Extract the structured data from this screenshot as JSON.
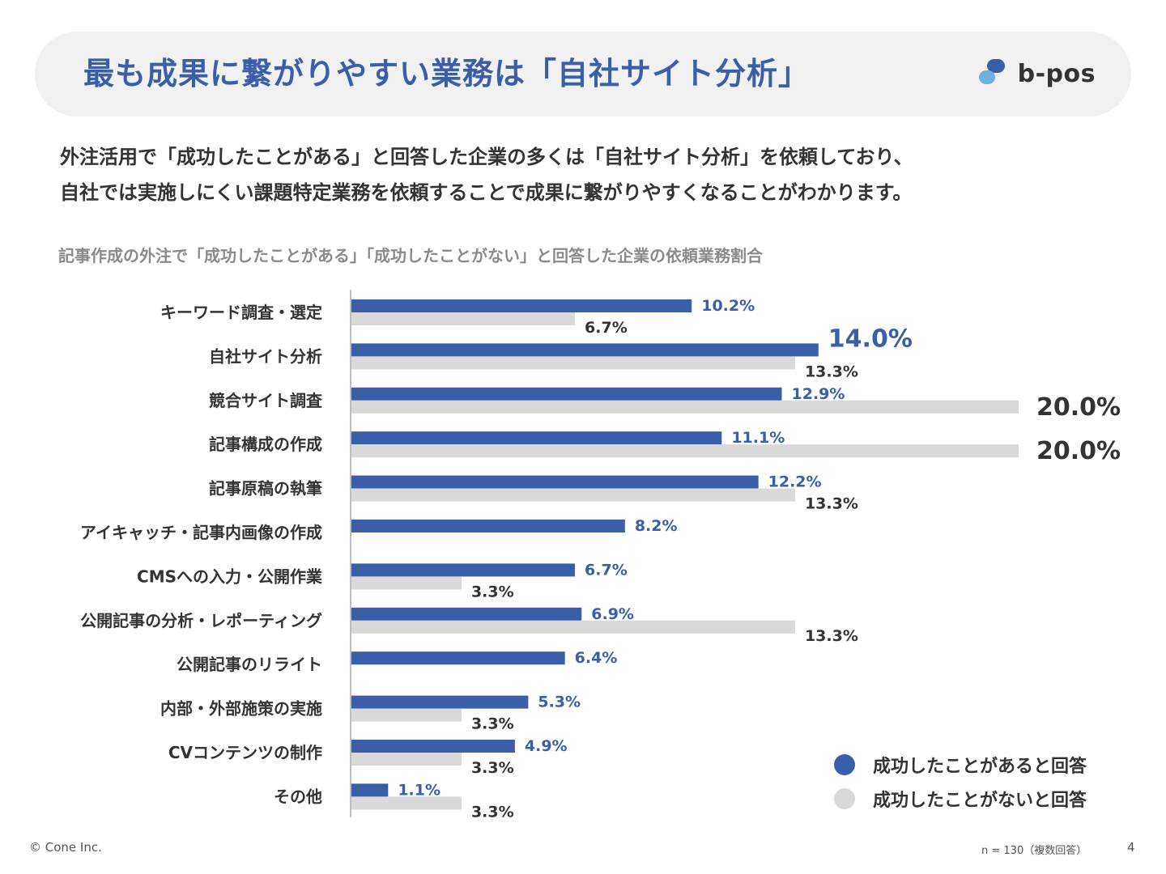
{
  "header": {
    "title": "最も成果に繋がりやすい業務は「自社サイト分析」",
    "logo_text": "b-pos",
    "logo_icon": "b-pos-logo-icon"
  },
  "lead": {
    "line1": "外注活用で「成功したことがある」と回答した企業の多くは「自社サイト分析」を依頼しており、",
    "line2": "自社では実施しにくい課題特定業務を依頼することで成果に繋がりやすくなることがわかります。"
  },
  "chart_caption": "記事作成の外注で「成功したことがある」「成功したことがない」と回答した企業の依頼業務割合",
  "chart_data": {
    "type": "bar",
    "orientation": "horizontal",
    "title": "記事作成の外注で「成功したことがある」「成功したことがない」と回答した企業の依頼業務割合",
    "categories": [
      "キーワード調査・選定",
      "自社サイト分析",
      "競合サイト調査",
      "記事構成の作成",
      "記事原稿の執筆",
      "アイキャッチ・記事内画像の作成",
      "CMSへの入力・公開作業",
      "公開記事の分析・レポーティング",
      "公開記事のリライト",
      "内部・外部施策の実施",
      "CVコンテンツの制作",
      "その他"
    ],
    "series": [
      {
        "name": "成功したことがあると回答",
        "color": "#3a5ea8",
        "values": [
          10.2,
          14.0,
          12.9,
          11.1,
          12.2,
          8.2,
          6.7,
          6.9,
          6.4,
          5.3,
          4.9,
          1.1
        ],
        "labels": [
          "10.2%",
          "14.0%",
          "12.9%",
          "11.1%",
          "12.2%",
          "8.2%",
          "6.7%",
          "6.9%",
          "6.4%",
          "5.3%",
          "4.9%",
          "1.1%"
        ]
      },
      {
        "name": "成功したことがないと回答",
        "color": "#d9d9d9",
        "values": [
          6.7,
          13.3,
          20.0,
          20.0,
          13.3,
          0,
          3.3,
          13.3,
          0,
          3.3,
          3.3,
          3.3
        ],
        "labels": [
          "6.7%",
          "13.3%",
          "20.0%",
          "20.0%",
          "13.3%",
          "",
          "3.3%",
          "13.3%",
          "",
          "3.3%",
          "3.3%",
          "3.3%"
        ]
      }
    ],
    "highlight_labels": [
      {
        "series": 0,
        "index": 1
      },
      {
        "series": 1,
        "index": 2
      },
      {
        "series": 1,
        "index": 3
      }
    ],
    "unit": "%",
    "xlim": [
      0,
      20
    ],
    "grid": false,
    "legend": "bottom-right"
  },
  "legend": {
    "success_label": "成功したことがあると回答",
    "fail_label": "成功したことがないと回答",
    "success_color": "#3a5ea8",
    "fail_color": "#d9d9d9"
  },
  "footer": {
    "copyright": "© Cone Inc.",
    "note": "n = 130（複数回答）",
    "page": "4"
  }
}
